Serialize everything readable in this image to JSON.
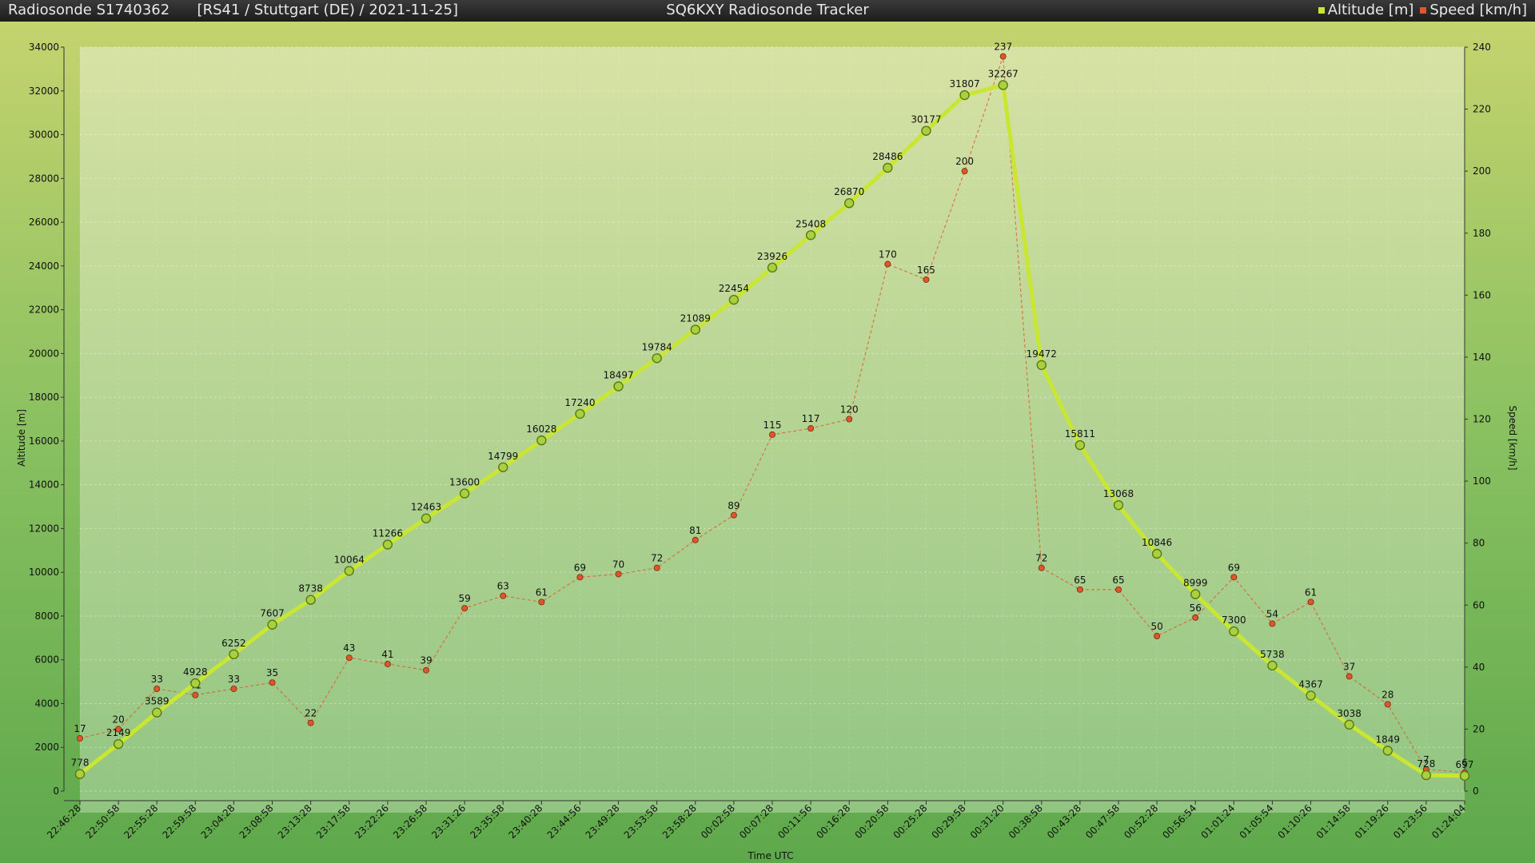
{
  "header": {
    "left_title": "Radiosonde S1740362",
    "left_subtitle": "[RS41 / Stuttgart (DE) / 2021-11-25]",
    "center_title": "SQ6KXY Radiosonde Tracker",
    "legend": [
      {
        "label": "Altitude [m]",
        "color": "#c8e632"
      },
      {
        "label": "Speed [km/h]",
        "color": "#e0552a"
      }
    ]
  },
  "chart_data": {
    "type": "line",
    "xlabel": "Time UTC",
    "ylabel": "Altitude [m]",
    "y2label": "Speed [km/h]",
    "ylim": [
      0,
      34000
    ],
    "y2lim": [
      0,
      240
    ],
    "yticks": [
      0,
      2000,
      4000,
      6000,
      8000,
      10000,
      12000,
      14000,
      16000,
      18000,
      20000,
      22000,
      24000,
      26000,
      28000,
      30000,
      32000,
      34000
    ],
    "y2ticks": [
      0,
      20,
      40,
      60,
      80,
      100,
      120,
      140,
      160,
      180,
      200,
      220,
      240
    ],
    "categories": [
      "22:46:28",
      "22:50:58",
      "22:55:28",
      "22:59:58",
      "23:04:28",
      "23:08:58",
      "23:13:28",
      "23:17:58",
      "23:22:26",
      "23:26:58",
      "23:31:26",
      "23:35:58",
      "23:40:28",
      "23:44:56",
      "23:49:28",
      "23:53:58",
      "23:58:28",
      "00:02:58",
      "00:07:28",
      "00:11:56",
      "00:16:28",
      "00:20:58",
      "00:25:28",
      "00:29:58",
      "00:31:20",
      "00:38:58",
      "00:43:28",
      "00:47:58",
      "00:52:28",
      "00:56:54",
      "01:01:24",
      "01:05:54",
      "01:10:26",
      "01:14:58",
      "01:19:26",
      "01:23:56",
      "01:24:04"
    ],
    "series": [
      {
        "name": "Altitude [m]",
        "axis": "left",
        "color": "#c8e632",
        "values": [
          778,
          2149,
          3589,
          4928,
          6252,
          7607,
          8738,
          10064,
          11266,
          12463,
          13600,
          14799,
          16028,
          17240,
          18497,
          19784,
          21089,
          22454,
          23926,
          25408,
          26870,
          28486,
          30177,
          31807,
          32267,
          19472,
          15811,
          13068,
          10846,
          8999,
          7300,
          5738,
          4367,
          3038,
          1849,
          728,
          697
        ]
      },
      {
        "name": "Speed [km/h]",
        "axis": "right",
        "color": "#e0552a",
        "values": [
          17,
          20,
          33,
          31,
          33,
          35,
          22,
          43,
          41,
          39,
          59,
          63,
          61,
          69,
          70,
          72,
          81,
          89,
          115,
          117,
          120,
          170,
          165,
          200,
          237,
          72,
          65,
          65,
          50,
          56,
          69,
          54,
          61,
          37,
          28,
          7,
          6
        ]
      }
    ]
  }
}
